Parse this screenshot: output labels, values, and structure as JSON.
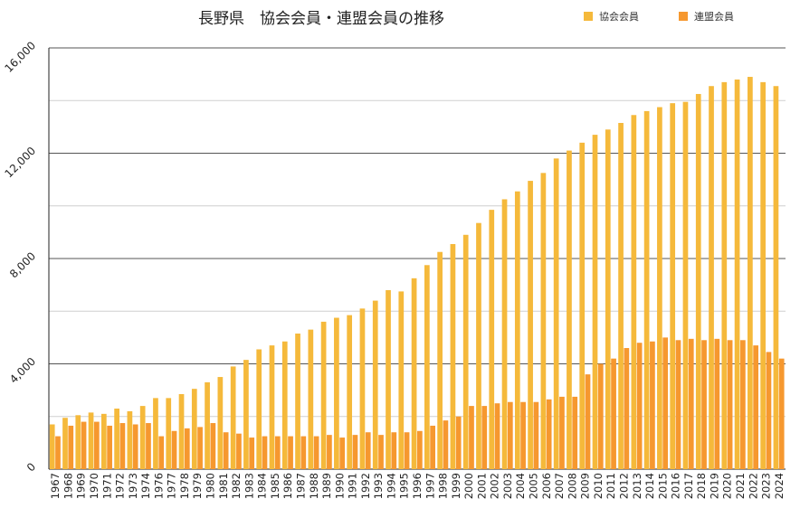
{
  "chart_data": {
    "type": "bar",
    "title": "長野県　協会会員・連盟会員の推移",
    "xlabel": "",
    "ylabel": "",
    "ylim": [
      0,
      16000
    ],
    "yticks": [
      0,
      4000,
      8000,
      12000,
      16000
    ],
    "ytick_labels": [
      "0",
      "4,000",
      "8,000",
      "12,000",
      "16,000"
    ],
    "grid": true,
    "legend_position": "top-right",
    "categories": [
      "1967",
      "1968",
      "1969",
      "1970",
      "1971",
      "1972",
      "1973",
      "1974",
      "1976",
      "1977",
      "1978",
      "1979",
      "1980",
      "1981",
      "1982",
      "1983",
      "1984",
      "1985",
      "1986",
      "1987",
      "1988",
      "1989",
      "1990",
      "1991",
      "1992",
      "1993",
      "1994",
      "1995",
      "1996",
      "1997",
      "1998",
      "1999",
      "2000",
      "2001",
      "2002",
      "2003",
      "2004",
      "2005",
      "2006",
      "2007",
      "2008",
      "2009",
      "2010",
      "2011",
      "2012",
      "2013",
      "2014",
      "2015",
      "2016",
      "2017",
      "2018",
      "2019",
      "2020",
      "2021",
      "2022",
      "2023",
      "2024"
    ],
    "series": [
      {
        "name": "協会会員",
        "color": "#F5B93B",
        "values": [
          1700,
          1950,
          2050,
          2150,
          2100,
          2300,
          2200,
          2400,
          2700,
          2700,
          2850,
          3050,
          3300,
          3500,
          3900,
          4150,
          4550,
          4700,
          4850,
          5150,
          5300,
          5600,
          5750,
          5850,
          6100,
          6400,
          6800,
          6750,
          7250,
          7750,
          8250,
          8550,
          8900,
          9350,
          9850,
          10250,
          10550,
          10950,
          11250,
          11800,
          12100,
          12400,
          12700,
          12900,
          13150,
          13450,
          13600,
          13750,
          13900,
          13950,
          14250,
          14550,
          14700,
          14800,
          14900,
          14700,
          14550
        ]
      },
      {
        "name": "連盟会員",
        "color": "#F6982F",
        "values": [
          1250,
          1650,
          1800,
          1800,
          1650,
          1750,
          1700,
          1750,
          1250,
          1450,
          1550,
          1600,
          1750,
          1400,
          1350,
          1200,
          1250,
          1250,
          1250,
          1250,
          1250,
          1300,
          1200,
          1300,
          1400,
          1300,
          1400,
          1400,
          1450,
          1650,
          1850,
          2000,
          2400,
          2400,
          2500,
          2550,
          2550,
          2550,
          2650,
          2750,
          2750,
          3600,
          4000,
          4200,
          4600,
          4800,
          4850,
          5000,
          4900,
          4950,
          4900,
          4950,
          4900,
          4900,
          4700,
          4450,
          4200
        ]
      }
    ]
  }
}
